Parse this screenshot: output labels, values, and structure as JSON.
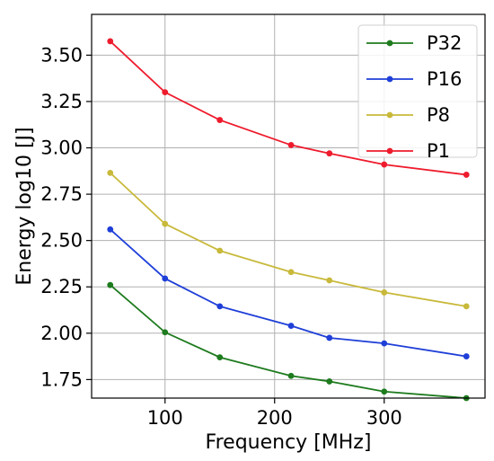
{
  "chart_data": {
    "type": "line",
    "title": "",
    "xlabel": "Frequency [MHz]",
    "ylabel": "Energy log10 [J]",
    "xlim": [
      33,
      392
    ],
    "ylim": [
      1.65,
      3.72
    ],
    "x_ticks": [
      100,
      200,
      300
    ],
    "y_ticks": [
      1.75,
      2.0,
      2.25,
      2.5,
      2.75,
      3.0,
      3.25,
      3.5
    ],
    "y_tick_labels": [
      "1.75",
      "2.00",
      "2.25",
      "2.50",
      "2.75",
      "3.00",
      "3.25",
      "3.50"
    ],
    "grid": true,
    "legend_position": "top-right",
    "x": [
      50,
      100,
      150,
      215,
      250,
      300,
      375
    ],
    "series": [
      {
        "name": "P32",
        "color": "#1e7b1e",
        "values": [
          2.26,
          2.005,
          1.87,
          1.77,
          1.74,
          1.685,
          1.65
        ]
      },
      {
        "name": "P16",
        "color": "#1f3fd8",
        "values": [
          2.56,
          2.295,
          2.145,
          2.04,
          1.975,
          1.945,
          1.875
        ]
      },
      {
        "name": "P8",
        "color": "#c8b93a",
        "values": [
          2.865,
          2.59,
          2.445,
          2.33,
          2.285,
          2.22,
          2.145
        ]
      },
      {
        "name": "P1",
        "color": "#ee1b2d",
        "values": [
          3.575,
          3.3,
          3.15,
          3.015,
          2.97,
          2.91,
          2.855
        ]
      }
    ]
  }
}
